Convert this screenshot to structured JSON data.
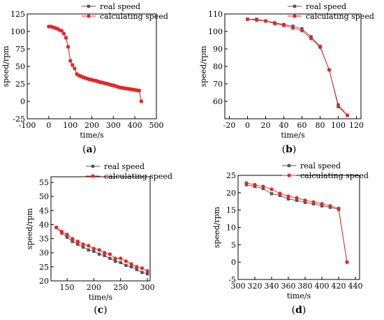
{
  "chart_data": [
    {
      "type": "line",
      "panel": "a",
      "xlabel": "time/s",
      "ylabel": "speed/rpm",
      "xlim": [
        -100,
        500
      ],
      "ylim": [
        -25,
        125
      ],
      "xticks": [
        -100,
        0,
        100,
        200,
        300,
        400,
        500
      ],
      "yticks": [
        -25,
        0,
        25,
        50,
        75,
        100,
        125
      ],
      "legend": "top-right",
      "series": [
        {
          "name": "real speed",
          "color": "#555555",
          "marker": "square",
          "x": [
            0,
            10,
            20,
            30,
            40,
            50,
            60,
            70,
            80,
            90,
            100,
            110,
            120,
            130,
            140,
            150,
            160,
            170,
            180,
            190,
            200,
            210,
            220,
            230,
            240,
            250,
            260,
            270,
            280,
            290,
            300,
            310,
            320,
            330,
            340,
            350,
            360,
            370,
            380,
            390,
            400,
            410,
            420,
            430
          ],
          "y": [
            107,
            107,
            106,
            105,
            104,
            102,
            101,
            97,
            91,
            78,
            58,
            52,
            47,
            39,
            37,
            35.5,
            34,
            33,
            32,
            31,
            30.5,
            29.5,
            29,
            28,
            27,
            26.5,
            25.5,
            25,
            24,
            23,
            22.5,
            21.5,
            20.5,
            19.5,
            19,
            18.5,
            18,
            17.5,
            17,
            16.5,
            16,
            15.5,
            15,
            0
          ]
        },
        {
          "name": "calculating speed",
          "color": "#ee2222",
          "marker": "circle",
          "x": [
            0,
            10,
            20,
            30,
            40,
            50,
            60,
            70,
            80,
            90,
            100,
            110,
            120,
            130,
            140,
            150,
            160,
            170,
            180,
            190,
            200,
            210,
            220,
            230,
            240,
            250,
            260,
            270,
            280,
            290,
            300,
            310,
            320,
            330,
            340,
            350,
            360,
            370,
            380,
            390,
            400,
            410,
            420,
            430
          ],
          "y": [
            107,
            107,
            106,
            105,
            104,
            102,
            101,
            97,
            91,
            78,
            58,
            52,
            47,
            39,
            37,
            36,
            34.5,
            33.5,
            32.5,
            31.5,
            31,
            30,
            29.5,
            28.5,
            27.5,
            27,
            26,
            25.5,
            24.5,
            23.5,
            23,
            22,
            21,
            20,
            19.5,
            19,
            18.5,
            18,
            17.5,
            17,
            16.5,
            16,
            15.5,
            0
          ]
        }
      ]
    },
    {
      "type": "line",
      "panel": "b",
      "xlabel": "time/s",
      "ylabel": "speed/rpm",
      "xlim": [
        -25,
        125
      ],
      "ylim": [
        50,
        110
      ],
      "xticks": [
        -20,
        0,
        20,
        40,
        60,
        80,
        100,
        120
      ],
      "yticks": [
        60,
        70,
        80,
        90,
        100,
        110
      ],
      "legend": "top-right",
      "series": [
        {
          "name": "real speed",
          "color": "#555555",
          "marker": "square",
          "x": [
            0,
            10,
            20,
            30,
            40,
            50,
            60,
            70,
            80,
            90,
            100,
            110
          ],
          "y": [
            107,
            107,
            106,
            105,
            104,
            103,
            101.5,
            97,
            91.5,
            78,
            58,
            52
          ]
        },
        {
          "name": "calculating speed",
          "color": "#ee2222",
          "marker": "circle",
          "x": [
            0,
            10,
            20,
            30,
            40,
            50,
            60,
            70,
            80,
            90,
            100,
            110
          ],
          "y": [
            107,
            106.5,
            106,
            104.5,
            103.5,
            102,
            100.5,
            96,
            91,
            78,
            57,
            52
          ]
        }
      ]
    },
    {
      "type": "line",
      "panel": "c",
      "xlabel": "time/s",
      "ylabel": "speed/rpm",
      "xlim": [
        120,
        305
      ],
      "ylim": [
        20,
        57
      ],
      "xticks": [
        150,
        200,
        250,
        300
      ],
      "yticks": [
        20,
        25,
        30,
        35,
        40,
        45,
        50,
        55
      ],
      "legend": "top-right",
      "series": [
        {
          "name": "real speed",
          "color": "#555555",
          "marker": "square",
          "x": [
            130,
            140,
            150,
            160,
            170,
            180,
            190,
            200,
            210,
            220,
            230,
            240,
            250,
            260,
            270,
            280,
            290,
            300
          ],
          "y": [
            39,
            37,
            35.5,
            34,
            33,
            32,
            31,
            30.5,
            29.5,
            29,
            28,
            27,
            26.5,
            25.5,
            25,
            24,
            23,
            22.5
          ]
        },
        {
          "name": "calculating speed",
          "color": "#ee2222",
          "marker": "circle",
          "x": [
            130,
            140,
            150,
            160,
            170,
            180,
            190,
            200,
            210,
            220,
            230,
            240,
            250,
            260,
            270,
            280,
            290,
            300
          ],
          "y": [
            39,
            37.5,
            36.5,
            35,
            34,
            33,
            32.5,
            31.5,
            31,
            30,
            29.5,
            28,
            28,
            27,
            26,
            25,
            24.5,
            23.5
          ]
        }
      ]
    },
    {
      "type": "line",
      "panel": "d",
      "xlabel": "time/s",
      "ylabel": "speed/rpm",
      "xlim": [
        300,
        445
      ],
      "ylim": [
        -5,
        25
      ],
      "xticks": [
        300,
        320,
        340,
        360,
        380,
        400,
        420,
        440
      ],
      "yticks": [
        -5,
        0,
        5,
        10,
        15,
        20,
        25
      ],
      "legend": "top-right",
      "series": [
        {
          "name": "real speed",
          "color": "#555555",
          "marker": "square",
          "x": [
            310,
            320,
            330,
            340,
            350,
            360,
            370,
            380,
            390,
            400,
            410,
            420,
            430
          ],
          "y": [
            22.3,
            21.8,
            21.2,
            19.7,
            19.2,
            18.2,
            17.8,
            17.2,
            16.8,
            16.2,
            15.8,
            15.2,
            0
          ]
        },
        {
          "name": "calculating speed",
          "color": "#ee2222",
          "marker": "circle",
          "x": [
            310,
            320,
            330,
            340,
            350,
            360,
            370,
            380,
            390,
            400,
            410,
            420,
            430
          ],
          "y": [
            22.8,
            22.3,
            21.8,
            21.0,
            19.8,
            19.0,
            18.5,
            17.8,
            17.3,
            16.8,
            16.2,
            15.5,
            0
          ]
        }
      ]
    }
  ],
  "panel_labels": [
    {
      "open": "(",
      "letter": "a",
      "close": ")"
    },
    {
      "open": "(",
      "letter": "b",
      "close": ")"
    },
    {
      "open": "(",
      "letter": "c",
      "close": ")"
    },
    {
      "open": "(",
      "letter": "d",
      "close": ")"
    }
  ]
}
